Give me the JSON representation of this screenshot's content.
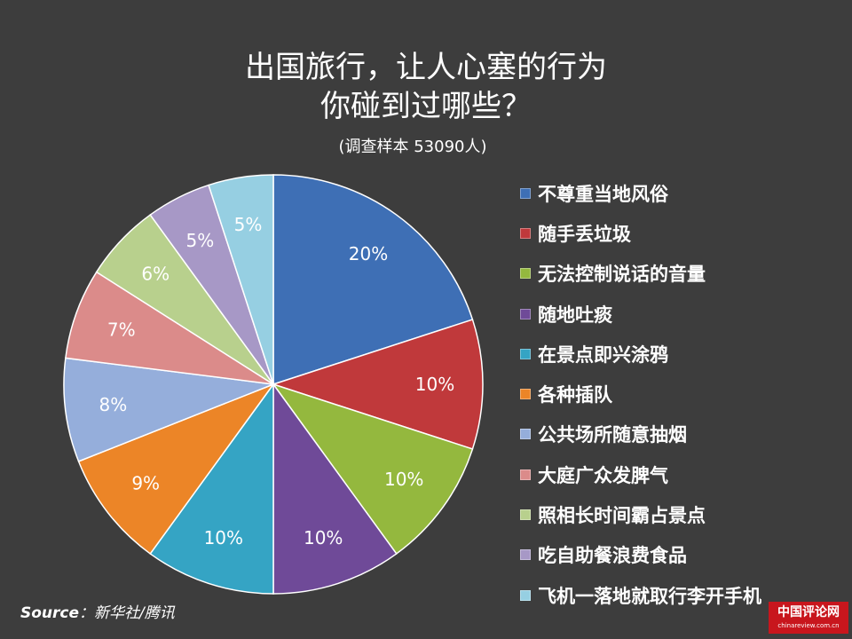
{
  "chart_data": {
    "type": "pie",
    "title": "出国旅行，让人心塞的行为",
    "title_line2": "你碰到过哪些？",
    "subtitle": "(调查样本 53090人)",
    "categories": [
      "不尊重当地风俗",
      "随手丢垃圾",
      "无法控制说话的音量",
      "随地吐痰",
      "在景点即兴涂鸦",
      "各种插队",
      "公共场所随意抽烟",
      "大庭广众发脾气",
      "照相长时间霸占景点",
      "吃自助餐浪费食品",
      "飞机一落地就取行李开手机"
    ],
    "values": [
      20,
      10,
      10,
      10,
      10,
      9,
      8,
      7,
      6,
      5,
      5
    ],
    "value_labels": [
      "20%",
      "10%",
      "10%",
      "10%",
      "10%",
      "9%",
      "8%",
      "7%",
      "6%",
      "5%",
      "5%"
    ],
    "colors": [
      "#3e6fb5",
      "#c0393b",
      "#94b83e",
      "#6f4a98",
      "#35a4c4",
      "#ec8527",
      "#95aedb",
      "#db8b8a",
      "#b8d08d",
      "#a798c6",
      "#96cfe2"
    ],
    "legend_position": "right",
    "start_angle": "12 o'clock, clockwise"
  },
  "source": {
    "key": "Source",
    "value": "：新华社/腾讯"
  },
  "watermark": {
    "name": "中国评论网",
    "url": "chinareview.com.cn"
  }
}
